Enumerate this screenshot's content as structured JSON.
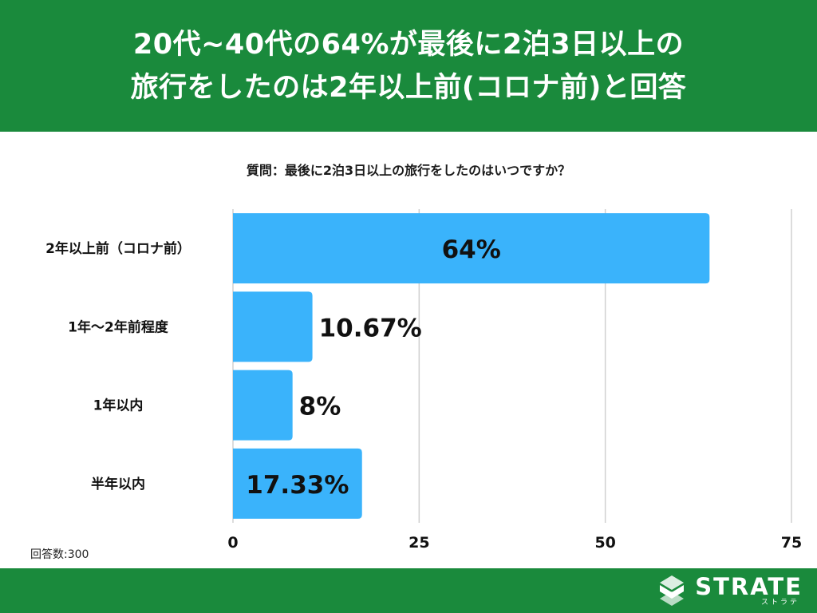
{
  "header": {
    "title_line1": "20代~40代の64%が最後に2泊3日以上の",
    "title_line2": "旅行をしたのは2年以上前(コロナ前)と回答"
  },
  "question": "質問：最後に2泊3日以上の旅行をしたのはいつですか？",
  "sample_size": "回答数:300",
  "brand": {
    "word": "STRATE",
    "kana": "ストラテ"
  },
  "colors": {
    "header_bg": "#1a8a3c",
    "footer_bg": "#1a8a3c",
    "bar": "#3ab3fb",
    "grid": "#d0d0d0"
  },
  "chart_data": {
    "type": "bar",
    "orientation": "horizontal",
    "categories": [
      "2年以上前（コロナ前）",
      "1年～2年前程度",
      "1年以内",
      "半年以内"
    ],
    "values": [
      64,
      10.67,
      8,
      17.33
    ],
    "data_labels": [
      "64%",
      "10.67%",
      "8%",
      "17.33%"
    ],
    "xlim": [
      0,
      75
    ],
    "xticks": [
      0,
      25,
      50,
      75
    ],
    "grid": true
  }
}
